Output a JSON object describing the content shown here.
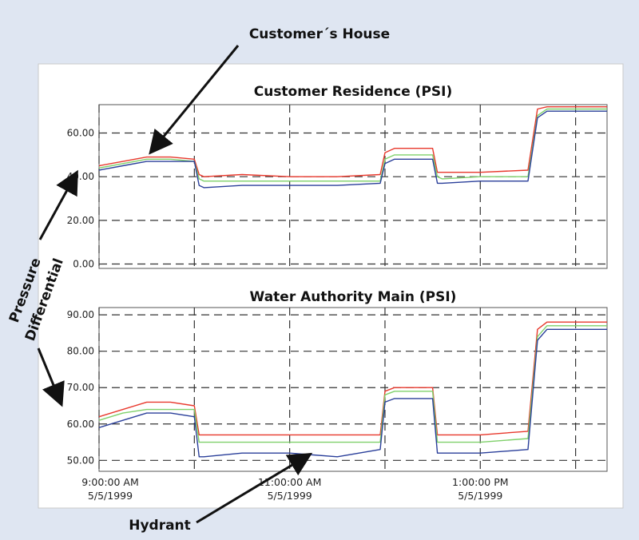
{
  "annotations": {
    "customers_house": "Customer´s House",
    "pressure_differential_line1": "Pressure",
    "pressure_differential_line2": "Differential",
    "hydrant": "Hydrant"
  },
  "series_colors": {
    "red": "#e8382c",
    "green": "#7fd06a",
    "blue": "#2a3f9a"
  },
  "x_axis": {
    "range": [
      9.0,
      14.33
    ],
    "ticks": [
      {
        "x": 9.0,
        "time": "9:00:00 AM",
        "date": "5/5/1999"
      },
      {
        "x": 11.0,
        "time": "11:00:00 AM",
        "date": "5/5/1999"
      },
      {
        "x": 13.0,
        "time": "1:00:00 PM",
        "date": "5/5/1999"
      }
    ],
    "gridlines": [
      9.0,
      10.0,
      11.0,
      12.0,
      13.0,
      14.0
    ]
  },
  "chart_data": [
    {
      "type": "line",
      "title": "Customer Residence (PSI)",
      "ylim": [
        -2,
        73
      ],
      "yticks": [
        "60.00",
        "40.00",
        "20.00",
        "0.00"
      ],
      "ytick_values": [
        60,
        40,
        20,
        0
      ],
      "grid": true,
      "x": [
        9.0,
        9.25,
        9.5,
        9.75,
        10.0,
        10.05,
        10.1,
        10.5,
        11.0,
        11.5,
        11.95,
        12.0,
        12.1,
        12.5,
        12.55,
        12.6,
        13.0,
        13.5,
        13.6,
        13.7,
        14.0,
        14.2,
        14.33
      ],
      "series": [
        {
          "values": [
            45,
            47,
            49,
            49,
            48,
            41,
            40,
            41,
            40,
            40,
            41,
            51,
            53,
            53,
            42,
            42,
            42,
            43,
            71,
            72,
            72,
            72,
            72
          ]
        },
        {
          "values": [
            44,
            46,
            48,
            48,
            47,
            39,
            38,
            38,
            38,
            38,
            38,
            48,
            50,
            50,
            40,
            39,
            40,
            40,
            68,
            71,
            71,
            71,
            71
          ]
        },
        {
          "values": [
            43,
            45,
            47,
            47,
            47,
            36,
            35,
            36,
            36,
            36,
            37,
            46,
            48,
            48,
            37,
            37,
            38,
            38,
            67,
            70,
            70,
            70,
            70
          ]
        }
      ]
    },
    {
      "type": "line",
      "title": "Water Authority Main (PSI)",
      "ylim": [
        47,
        92
      ],
      "yticks": [
        "90.00",
        "80.00",
        "70.00",
        "60.00",
        "50.00"
      ],
      "ytick_values": [
        90,
        80,
        70,
        60,
        50
      ],
      "grid": true,
      "x": [
        9.0,
        9.25,
        9.5,
        9.75,
        10.0,
        10.05,
        10.1,
        10.5,
        11.0,
        11.5,
        11.95,
        12.0,
        12.1,
        12.5,
        12.55,
        12.6,
        13.0,
        13.5,
        13.6,
        13.7,
        14.0,
        14.2,
        14.33
      ],
      "series": [
        {
          "values": [
            62,
            64,
            66,
            66,
            65,
            57,
            57,
            57,
            57,
            57,
            57,
            69,
            70,
            70,
            57,
            57,
            57,
            58,
            86,
            88,
            88,
            88,
            88
          ]
        },
        {
          "values": [
            61,
            63,
            64,
            64,
            64,
            55,
            55,
            55,
            55,
            55,
            55,
            68,
            69,
            69,
            55,
            55,
            55,
            56,
            84,
            87,
            87,
            87,
            87
          ]
        },
        {
          "values": [
            59,
            61,
            63,
            63,
            62,
            51,
            51,
            52,
            52,
            51,
            53,
            66,
            67,
            67,
            52,
            52,
            52,
            53,
            83,
            86,
            86,
            86,
            86
          ]
        }
      ]
    }
  ]
}
